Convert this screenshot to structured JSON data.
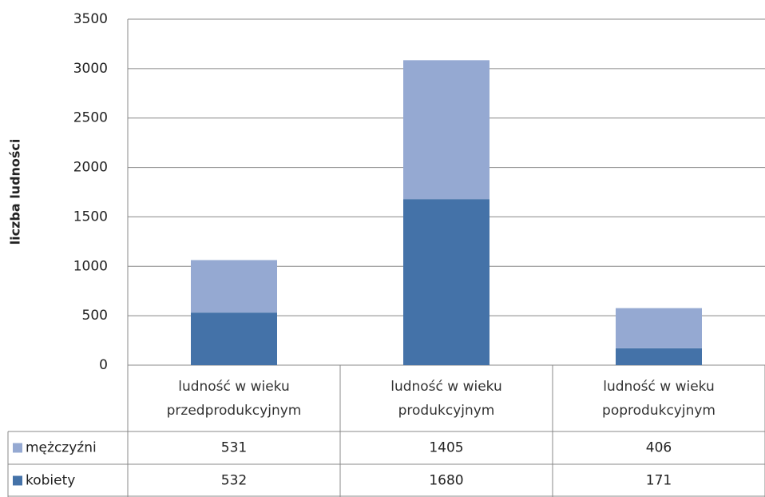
{
  "chart_data": {
    "type": "stacked_bar",
    "y_label": "liczba ludności",
    "categories": [
      "ludność w wieku przedprodukcyjnym",
      "ludność w wieku produkcyjnym",
      "ludność w wieku poprodukcyjnym"
    ],
    "series": [
      {
        "name": "mężczyźni",
        "color": "#95a9d2",
        "values": [
          531,
          1405,
          406
        ]
      },
      {
        "name": "kobiety",
        "color": "#4472a8",
        "values": [
          532,
          1680,
          171
        ]
      }
    ],
    "ylim": [
      0,
      3500
    ],
    "yticks": [
      0,
      500,
      1000,
      1500,
      2000,
      2500,
      3000,
      3500
    ],
    "grid": true
  }
}
